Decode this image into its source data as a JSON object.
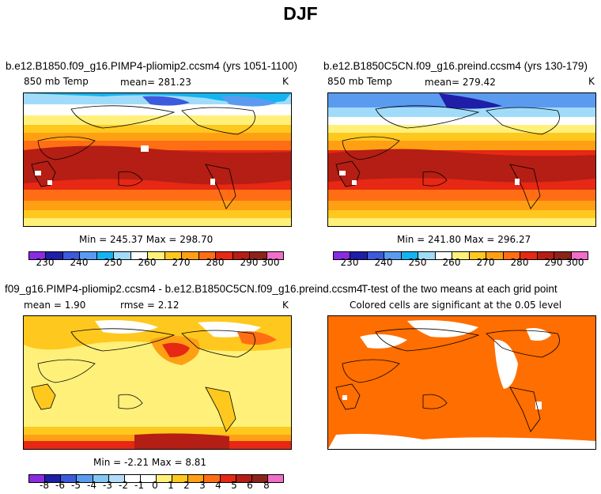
{
  "page_title": "DJF",
  "panels": {
    "top_left": {
      "title": "b.e12.B1850.f09_g16.PIMP4-pliomip2.ccsm4 (yrs 1051-1100)",
      "variable": "850 mb Temp",
      "stat": "mean=  281.23",
      "units": "K",
      "minmax": "Min = 245.37 Max = 298.70",
      "colorbar_labels": [
        "230",
        "240",
        "250",
        "260",
        "270",
        "280",
        "290",
        "300"
      ]
    },
    "top_right": {
      "title": "b.e12.B1850C5CN.f09_g16.preind.ccsm4 (yrs 130-179)",
      "variable": "850 mb Temp",
      "stat": "mean=  279.42",
      "units": "K",
      "minmax": "Min = 241.80 Max = 296.27",
      "colorbar_labels": [
        "230",
        "240",
        "250",
        "260",
        "270",
        "280",
        "290",
        "300"
      ]
    },
    "bottom_left": {
      "title": "f09_g16.PIMP4-pliomip2.ccsm4 - b.e12.B1850C5CN.f09_g16.preind.ccsm4",
      "stat_mean": "mean =    1.90",
      "stat_rmse": "rmse =    2.12",
      "units": "K",
      "minmax": "Min =  -2.21 Max =    8.81",
      "colorbar_labels": [
        "-8",
        "-6",
        "-5",
        "-4",
        "-3",
        "-2",
        "-1",
        "0",
        "1",
        "2",
        "3",
        "4",
        "5",
        "6",
        "8"
      ]
    },
    "bottom_right": {
      "title": "T-test of the two means at each grid point",
      "subtitle": "Colored cells are significant at the 0.05 level"
    }
  },
  "colors": {
    "abs_scale": [
      "#8a2be2",
      "#1e1ea8",
      "#3c5adc",
      "#5a9bf0",
      "#14b4f0",
      "#a0dcfa",
      "#ffffff",
      "#fff07a",
      "#ffc81e",
      "#ffa014",
      "#ff6e14",
      "#e62814",
      "#b41e14",
      "#8c2319",
      "#f06ec8"
    ],
    "diff_scale": [
      "#8a2be2",
      "#1e1ea8",
      "#3c5adc",
      "#5a9bf0",
      "#82c8f0",
      "#b4dcfa",
      "#ffffff",
      "#ffffff",
      "#fff07a",
      "#ffc81e",
      "#ffa014",
      "#ff6e14",
      "#e62814",
      "#b41e14",
      "#8c2319",
      "#f06ec8"
    ],
    "ttest_fill": "#ff6e00"
  }
}
